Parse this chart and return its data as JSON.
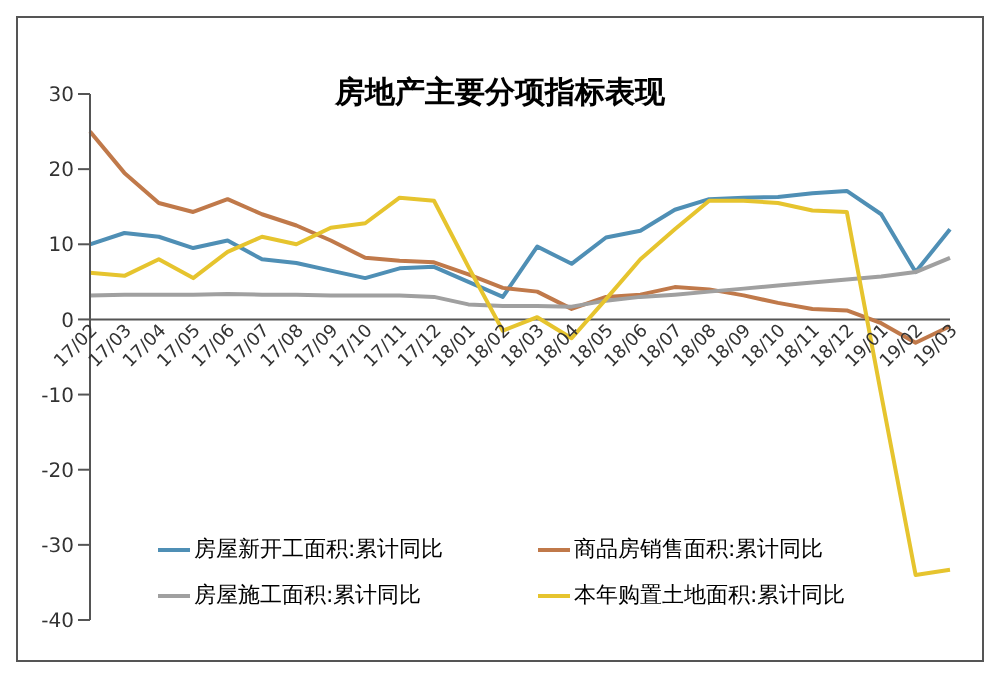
{
  "chart_data": {
    "type": "line",
    "title": "房地产主要分项指标表现",
    "categories": [
      "17/02",
      "17/03",
      "17/04",
      "17/05",
      "17/06",
      "17/07",
      "17/08",
      "17/09",
      "17/10",
      "17/11",
      "17/12",
      "18/01",
      "18/02",
      "18/03",
      "18/04",
      "18/05",
      "18/06",
      "18/07",
      "18/08",
      "18/09",
      "18/10",
      "18/11",
      "18/12",
      "19/01",
      "19/02",
      "19/03"
    ],
    "series": [
      {
        "name": "房屋新开工面积:累计同比",
        "color": "#4f8fb5",
        "values": [
          10,
          11.5,
          11,
          9.5,
          10.5,
          8,
          7.5,
          6.5,
          5.5,
          6.8,
          7,
          5,
          3,
          9.7,
          7.4,
          10.9,
          11.8,
          14.6,
          16,
          16.2,
          16.3,
          16.8,
          17.1,
          14,
          6.3,
          12
        ]
      },
      {
        "name": "商品房销售面积:累计同比",
        "color": "#c0794a",
        "values": [
          25,
          19.5,
          15.5,
          14.3,
          16,
          14,
          12.5,
          10.5,
          8.2,
          7.8,
          7.6,
          6,
          4.2,
          3.7,
          1.4,
          3,
          3.3,
          4.3,
          4,
          3.2,
          2.2,
          1.4,
          1.2,
          -0.5,
          -3.1,
          -0.9
        ]
      },
      {
        "name": "房屋施工面积:累计同比",
        "color": "#a0a0a0",
        "values": [
          3.2,
          3.3,
          3.3,
          3.3,
          3.4,
          3.3,
          3.3,
          3.2,
          3.2,
          3.2,
          3,
          2,
          1.8,
          1.8,
          1.7,
          2.5,
          3,
          3.3,
          3.7,
          4.1,
          4.5,
          4.9,
          5.3,
          5.7,
          6.3,
          8.2
        ]
      },
      {
        "name": "本年购置土地面积:累计同比",
        "color": "#e6c42e",
        "values": [
          6.2,
          5.8,
          8,
          5.5,
          9,
          11,
          10,
          12.2,
          12.8,
          16.2,
          15.8,
          7,
          -1.5,
          0.3,
          -2.5,
          2.7,
          8,
          12,
          15.8,
          15.8,
          15.5,
          14.5,
          14.3,
          -10,
          -34,
          -33.3
        ]
      }
    ],
    "ylim": [
      -40,
      30
    ],
    "yticks": [
      -40,
      -30,
      -20,
      -10,
      0,
      10,
      20,
      30
    ],
    "grid": false,
    "legend": "bottom",
    "marker": "none",
    "line_style": "solid"
  }
}
